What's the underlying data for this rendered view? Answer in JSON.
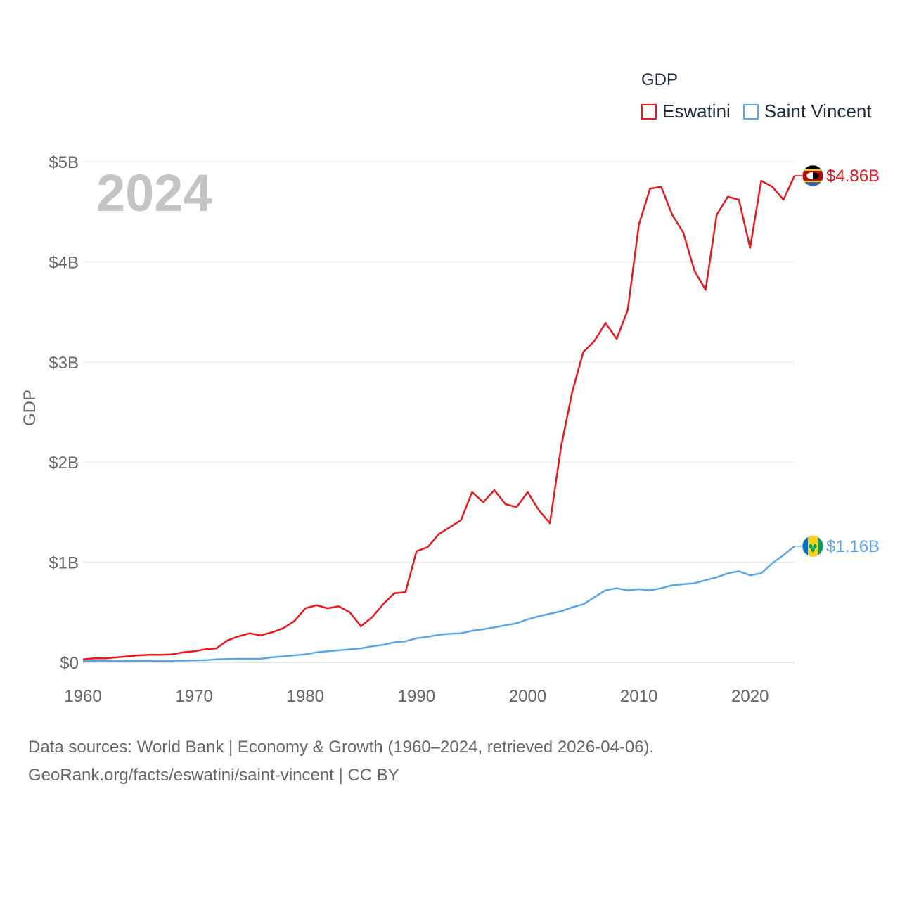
{
  "legend": {
    "title": "GDP",
    "items": [
      {
        "label": "Eswatini",
        "color": "#e8181e"
      },
      {
        "label": "Saint Vincent",
        "color": "#5aa5e6"
      }
    ]
  },
  "footer": {
    "line1": "Data sources: World Bank | Economy & Growth (1960–2024, retrieved 2026-04-06).",
    "line2": "GeoRank.org/facts/eswatini/saint-vincent | CC BY"
  },
  "chart_data": {
    "type": "line",
    "year_label": "2024",
    "ylabel": "GDP",
    "xlabel": "",
    "xlim": [
      1960,
      2024
    ],
    "ylim": [
      0,
      5
    ],
    "y_unit": "billion USD",
    "yticks": [
      0,
      1,
      2,
      3,
      4,
      5
    ],
    "ytick_labels": [
      "$0",
      "$1B",
      "$2B",
      "$3B",
      "$4B",
      "$5B"
    ],
    "xticks": [
      1960,
      1970,
      1980,
      1990,
      2000,
      2010,
      2020
    ],
    "xtick_labels": [
      "1960",
      "1970",
      "1980",
      "1990",
      "2000",
      "2010",
      "2020"
    ],
    "grid": true,
    "x": [
      1960,
      1961,
      1962,
      1963,
      1964,
      1965,
      1966,
      1967,
      1968,
      1969,
      1970,
      1971,
      1972,
      1973,
      1974,
      1975,
      1976,
      1977,
      1978,
      1979,
      1980,
      1981,
      1982,
      1983,
      1984,
      1985,
      1986,
      1987,
      1988,
      1989,
      1990,
      1991,
      1992,
      1993,
      1994,
      1995,
      1996,
      1997,
      1998,
      1999,
      2000,
      2001,
      2002,
      2003,
      2004,
      2005,
      2006,
      2007,
      2008,
      2009,
      2010,
      2011,
      2012,
      2013,
      2014,
      2015,
      2016,
      2017,
      2018,
      2019,
      2020,
      2021,
      2022,
      2023,
      2024
    ],
    "series": [
      {
        "name": "Eswatini",
        "color": "#e8181e",
        "end_label": "$4.86B",
        "values": [
          0.03,
          0.04,
          0.04,
          0.05,
          0.06,
          0.07,
          0.075,
          0.075,
          0.08,
          0.1,
          0.11,
          0.13,
          0.14,
          0.22,
          0.26,
          0.29,
          0.27,
          0.3,
          0.34,
          0.41,
          0.54,
          0.57,
          0.54,
          0.56,
          0.5,
          0.36,
          0.45,
          0.58,
          0.69,
          0.7,
          1.11,
          1.15,
          1.28,
          1.35,
          1.42,
          1.7,
          1.6,
          1.72,
          1.58,
          1.55,
          1.7,
          1.52,
          1.39,
          2.15,
          2.7,
          3.1,
          3.21,
          3.39,
          3.23,
          3.52,
          4.37,
          4.73,
          4.75,
          4.47,
          4.29,
          3.91,
          3.72,
          4.47,
          4.65,
          4.62,
          4.14,
          4.81,
          4.75,
          4.62,
          4.86
        ]
      },
      {
        "name": "Saint Vincent",
        "color": "#5aa5e6",
        "end_label": "$1.16B",
        "values": [
          0.012,
          0.013,
          0.013,
          0.013,
          0.014,
          0.015,
          0.016,
          0.016,
          0.016,
          0.017,
          0.02,
          0.022,
          0.03,
          0.033,
          0.035,
          0.035,
          0.036,
          0.05,
          0.06,
          0.07,
          0.08,
          0.1,
          0.11,
          0.12,
          0.13,
          0.14,
          0.16,
          0.175,
          0.2,
          0.21,
          0.24,
          0.255,
          0.275,
          0.285,
          0.29,
          0.315,
          0.33,
          0.35,
          0.37,
          0.39,
          0.43,
          0.46,
          0.485,
          0.51,
          0.55,
          0.58,
          0.65,
          0.72,
          0.74,
          0.72,
          0.73,
          0.72,
          0.74,
          0.77,
          0.78,
          0.79,
          0.82,
          0.85,
          0.89,
          0.91,
          0.87,
          0.89,
          0.99,
          1.07,
          1.16
        ]
      }
    ]
  }
}
